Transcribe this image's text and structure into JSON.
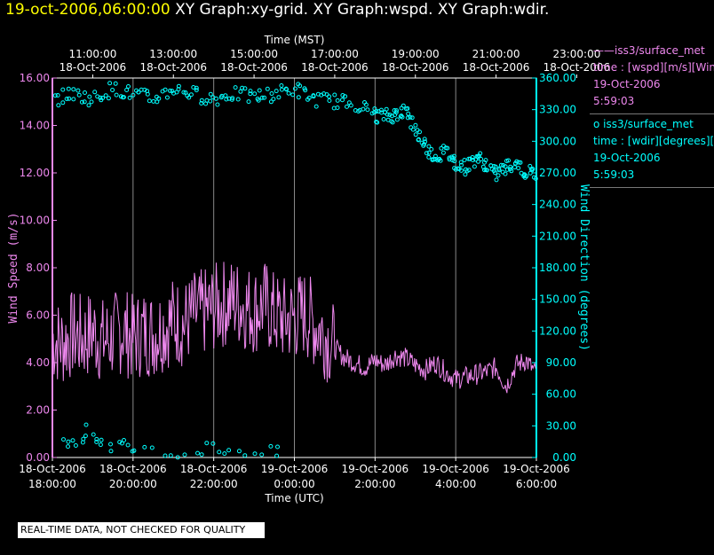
{
  "header": {
    "timestamp": "19-oct-2006,06:00:00",
    "graphs": "XY Graph:xy-grid.  XY Graph:wspd.  XY Graph:wdir."
  },
  "quality_note": "REAL-TIME DATA, NOT CHECKED FOR QUALITY",
  "legend": [
    {
      "marker": "——",
      "name": "iss3/surface_met",
      "var": "time : [wspd][m/s][Wind",
      "date": "19-Oct-2006",
      "time": "5:59:03",
      "color": "#ee88ee"
    },
    {
      "marker": "o",
      "name": "iss3/surface_met",
      "var": "time : [wdir][degrees][W",
      "date": "19-Oct-2006",
      "time": "5:59:03",
      "color": "#00ffff"
    }
  ],
  "chart_data": {
    "type": "line",
    "title": "",
    "top_axis": {
      "label": "Time (MST)",
      "ticks": [
        {
          "time": "11:00:00",
          "date": "18-Oct-2006"
        },
        {
          "time": "13:00:00",
          "date": "18-Oct-2006"
        },
        {
          "time": "15:00:00",
          "date": "18-Oct-2006"
        },
        {
          "time": "17:00:00",
          "date": "18-Oct-2006"
        },
        {
          "time": "19:00:00",
          "date": "18-Oct-2006"
        },
        {
          "time": "21:00:00",
          "date": "18-Oct-2006"
        },
        {
          "time": "23:00:00",
          "date": "18-Oct-2006"
        }
      ]
    },
    "bottom_axis": {
      "label": "Time (UTC)",
      "ticks": [
        {
          "date": "18-Oct-2006",
          "time": "18:00:00"
        },
        {
          "date": "18-Oct-2006",
          "time": "20:00:00"
        },
        {
          "date": "18-Oct-2006",
          "time": "22:00:00"
        },
        {
          "date": "19-Oct-2006",
          "time": "0:00:00"
        },
        {
          "date": "19-Oct-2006",
          "time": "2:00:00"
        },
        {
          "date": "19-Oct-2006",
          "time": "4:00:00"
        },
        {
          "date": "19-Oct-2006",
          "time": "6:00:00"
        }
      ]
    },
    "x_range_hours_utc": [
      18,
      30
    ],
    "left_axis": {
      "label": "Wind Speed (m/s)",
      "range": [
        0,
        16
      ],
      "color": "#ee88ee",
      "ticks": [
        "0.00",
        "2.00",
        "4.00",
        "6.00",
        "8.00",
        "10.00",
        "12.00",
        "14.00",
        "16.00"
      ]
    },
    "right_axis": {
      "label": "Wind Direction (degrees)",
      "range": [
        0,
        360
      ],
      "color": "#00ffff",
      "ticks": [
        "0.00",
        "30.00",
        "60.00",
        "90.00",
        "120.00",
        "150.00",
        "180.00",
        "210.00",
        "240.00",
        "270.00",
        "300.00",
        "330.00",
        "360.00"
      ]
    },
    "series": [
      {
        "name": "wspd",
        "unit": "m/s",
        "style": "line",
        "x": [
          18.0,
          18.25,
          18.5,
          18.75,
          19.0,
          19.25,
          19.5,
          19.75,
          20.0,
          20.25,
          20.5,
          20.75,
          21.0,
          21.25,
          21.5,
          21.75,
          22.0,
          22.25,
          22.5,
          22.75,
          23.0,
          23.25,
          23.5,
          23.75,
          24.0,
          24.25,
          24.5,
          24.75,
          25.0,
          25.25,
          25.5,
          25.75,
          26.0,
          26.25,
          26.5,
          26.75,
          27.0,
          27.25,
          27.5,
          27.75,
          28.0,
          28.25,
          28.5,
          28.75,
          29.0,
          29.25,
          29.5,
          29.75,
          30.0
        ],
        "y": [
          5.0,
          4.8,
          5.2,
          5.0,
          5.3,
          4.9,
          5.1,
          5.4,
          5.0,
          5.3,
          5.2,
          5.5,
          5.8,
          5.6,
          6.0,
          6.1,
          6.3,
          6.5,
          6.6,
          6.4,
          6.2,
          6.5,
          6.0,
          5.8,
          5.9,
          6.1,
          5.6,
          5.2,
          4.6,
          4.2,
          4.0,
          3.8,
          4.1,
          3.9,
          4.3,
          4.2,
          3.9,
          3.7,
          4.0,
          3.6,
          3.3,
          3.4,
          3.5,
          3.6,
          3.8,
          3.0,
          3.9,
          4.1,
          3.5
        ]
      },
      {
        "name": "wdir",
        "unit": "degrees",
        "style": "scatter",
        "x": [
          18.0,
          18.5,
          19.0,
          19.5,
          20.0,
          20.5,
          21.0,
          21.5,
          22.0,
          22.5,
          23.0,
          23.5,
          24.0,
          24.5,
          25.0,
          25.5,
          26.0,
          26.25,
          26.5,
          26.75,
          27.0,
          27.25,
          27.5,
          27.75,
          28.0,
          28.25,
          28.5,
          28.75,
          29.0,
          29.25,
          29.5,
          29.75,
          30.0
        ],
        "y": [
          340,
          345,
          340,
          350,
          345,
          340,
          350,
          345,
          340,
          345,
          342,
          345,
          350,
          340,
          338,
          336,
          325,
          324,
          325,
          330,
          310,
          295,
          285,
          290,
          280,
          275,
          285,
          278,
          268,
          275,
          280,
          270,
          270
        ]
      },
      {
        "name": "wdir_low_cluster",
        "unit": "degrees",
        "style": "scatter",
        "x": [
          18.3,
          18.6,
          18.9,
          19.2,
          19.6,
          20.0,
          20.4,
          21.0,
          21.5,
          22.0,
          22.6,
          23.2,
          23.8
        ],
        "y": [
          10,
          20,
          25,
          15,
          12,
          8,
          5,
          3,
          2,
          10,
          6,
          4,
          3
        ]
      }
    ]
  }
}
